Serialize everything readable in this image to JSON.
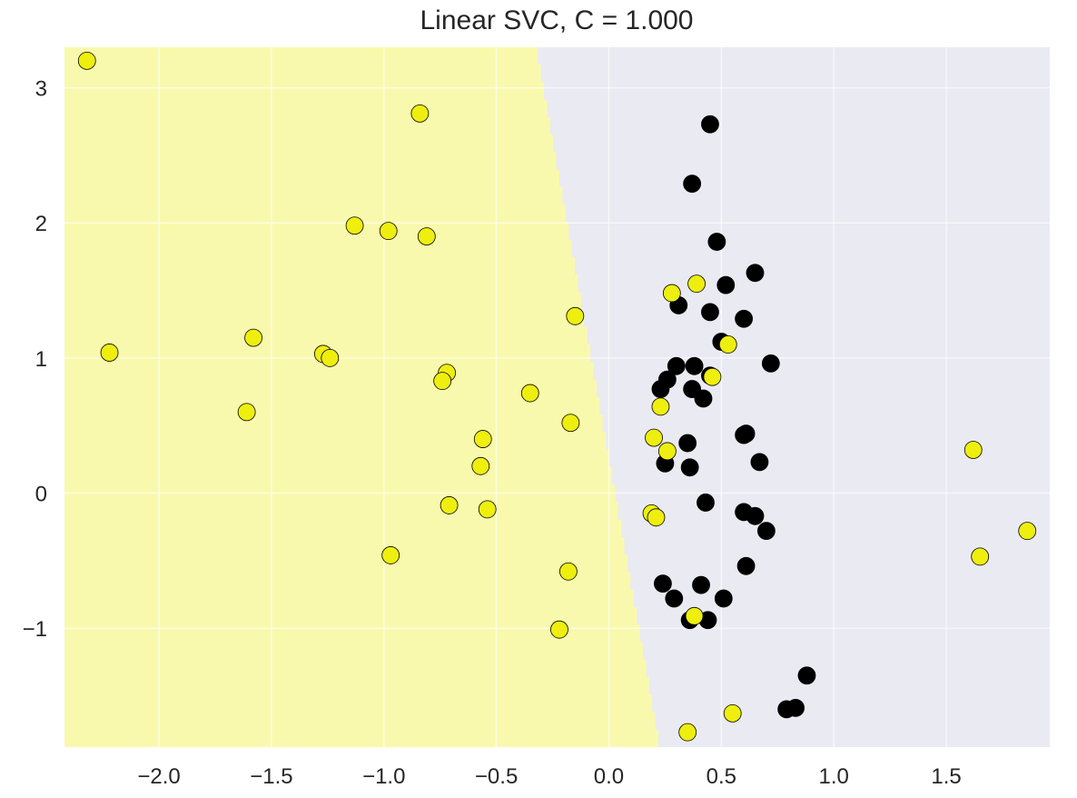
{
  "chart_data": {
    "type": "scatter",
    "title": "Linear SVC, C = 1.000",
    "xlabel": "",
    "ylabel": "",
    "xlim": [
      -2.42,
      1.96
    ],
    "ylim": [
      -1.88,
      3.3
    ],
    "grid": true,
    "x_ticks": [
      -2.0,
      -1.5,
      -1.0,
      -0.5,
      0.0,
      0.5,
      1.0,
      1.5
    ],
    "x_tick_labels": [
      "−2.0",
      "−1.5",
      "−1.0",
      "−0.5",
      "0.0",
      "0.5",
      "1.0",
      "1.5"
    ],
    "y_ticks": [
      -1,
      0,
      1,
      2,
      3
    ],
    "y_tick_labels": [
      "−1",
      "0",
      "1",
      "2",
      "3"
    ],
    "decision_regions": {
      "left_color": "#f9f9ad",
      "right_color": "#eaeaf2",
      "boundary": [
        [
          -0.33,
          3.3
        ],
        [
          0.22,
          -1.88
        ]
      ]
    },
    "class_colors": {
      "yellow": "#eeee0f",
      "black": "#000000"
    },
    "series": [
      {
        "class": "yellow",
        "x": [
          -2.32,
          -0.84,
          -1.13,
          -0.98,
          -0.81,
          -0.15,
          -2.22,
          -1.58,
          -1.27,
          -1.24,
          -0.72,
          -0.74,
          -0.35,
          -1.61,
          -0.17,
          -0.56,
          -0.57,
          -0.71,
          -0.54,
          -0.97,
          -0.18,
          -0.22,
          0.28,
          0.39,
          0.53,
          0.46,
          0.23,
          0.2,
          0.26,
          0.19,
          0.21,
          0.38,
          0.55,
          0.35,
          1.62,
          1.86,
          1.65
        ],
        "y": [
          3.2,
          2.81,
          1.98,
          1.94,
          1.9,
          1.31,
          1.04,
          1.15,
          1.03,
          1.0,
          0.89,
          0.83,
          0.74,
          0.6,
          0.52,
          0.4,
          0.2,
          -0.09,
          -0.12,
          -0.46,
          -0.58,
          -1.01,
          1.48,
          1.55,
          1.1,
          0.86,
          0.64,
          0.41,
          0.31,
          -0.15,
          -0.18,
          -0.91,
          -1.63,
          -1.77,
          0.32,
          -0.28,
          -0.47
        ]
      },
      {
        "class": "black",
        "x": [
          0.45,
          0.37,
          0.48,
          0.65,
          0.52,
          0.31,
          0.45,
          0.6,
          0.5,
          0.72,
          0.3,
          0.38,
          0.26,
          0.23,
          0.37,
          0.42,
          0.6,
          0.35,
          0.25,
          0.36,
          0.67,
          0.43,
          0.6,
          0.65,
          0.7,
          0.61,
          0.24,
          0.41,
          0.29,
          0.51,
          0.36,
          0.44,
          0.88,
          0.83,
          0.79,
          0.61,
          0.45
        ],
        "y": [
          2.73,
          2.29,
          1.86,
          1.63,
          1.54,
          1.39,
          1.34,
          1.29,
          1.12,
          0.96,
          0.94,
          0.94,
          0.84,
          0.77,
          0.77,
          0.7,
          0.43,
          0.37,
          0.22,
          0.19,
          0.23,
          -0.07,
          -0.14,
          -0.17,
          -0.28,
          -0.54,
          -0.67,
          -0.68,
          -0.78,
          -0.78,
          -0.94,
          -0.94,
          -1.35,
          -1.59,
          -1.6,
          0.44,
          0.87
        ]
      }
    ]
  }
}
